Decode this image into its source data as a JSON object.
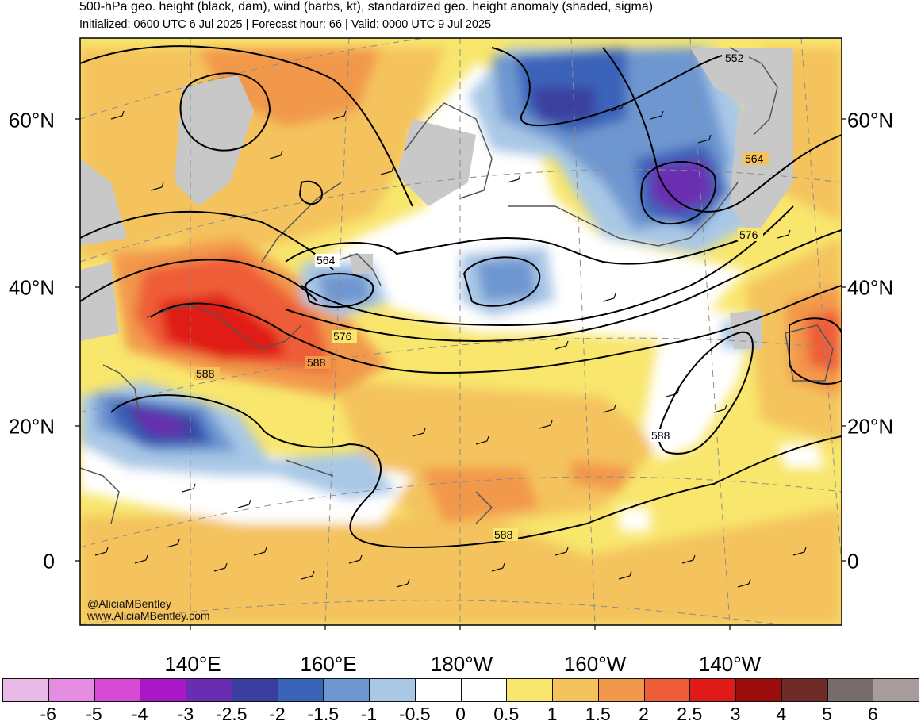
{
  "header": {
    "title": "500-hPa geo. height (black, dam), wind (barbs, kt), standardized geo. height anomaly (shaded, sigma)",
    "subtitle": "Initialized: 0600 UTC 6 Jul 2025 | Forecast hour: 66 | Valid: 0000 UTC 9 Jul 2025"
  },
  "map": {
    "lat_labels": [
      "60°N",
      "40°N",
      "20°N",
      "0"
    ],
    "lon_labels": [
      "140°E",
      "160°E",
      "180°W",
      "160°W",
      "140°W"
    ],
    "contour_labels": [
      "552",
      "564",
      "576",
      "564",
      "576",
      "588",
      "588",
      "588",
      "588"
    ],
    "credit_handle": "@AliciaMBentley",
    "credit_site": "www.AliciaMBentley.com",
    "colors": {
      "land_missing": "#c8c8c8",
      "coast": "#555555",
      "contour": "#000000"
    }
  },
  "colorbar": {
    "ticks": [
      "-6",
      "-5",
      "-4",
      "-3",
      "-2.5",
      "-2",
      "-1.5",
      "-1",
      "-0.5",
      "0",
      "0.5",
      "1",
      "1.5",
      "2",
      "2.5",
      "3",
      "4",
      "5",
      "6"
    ],
    "colors": [
      "#e9b9e7",
      "#e58be2",
      "#d84ad6",
      "#aa17c7",
      "#6a2db1",
      "#3a3f9f",
      "#3a64b9",
      "#6e96d0",
      "#a8c8e6",
      "#ffffff",
      "#ffffff",
      "#f8e66d",
      "#f4c35d",
      "#f2984c",
      "#ee5d37",
      "#e01a19",
      "#9c0c0c",
      "#6e2b27",
      "#776b6b",
      "#a89c9c"
    ]
  }
}
